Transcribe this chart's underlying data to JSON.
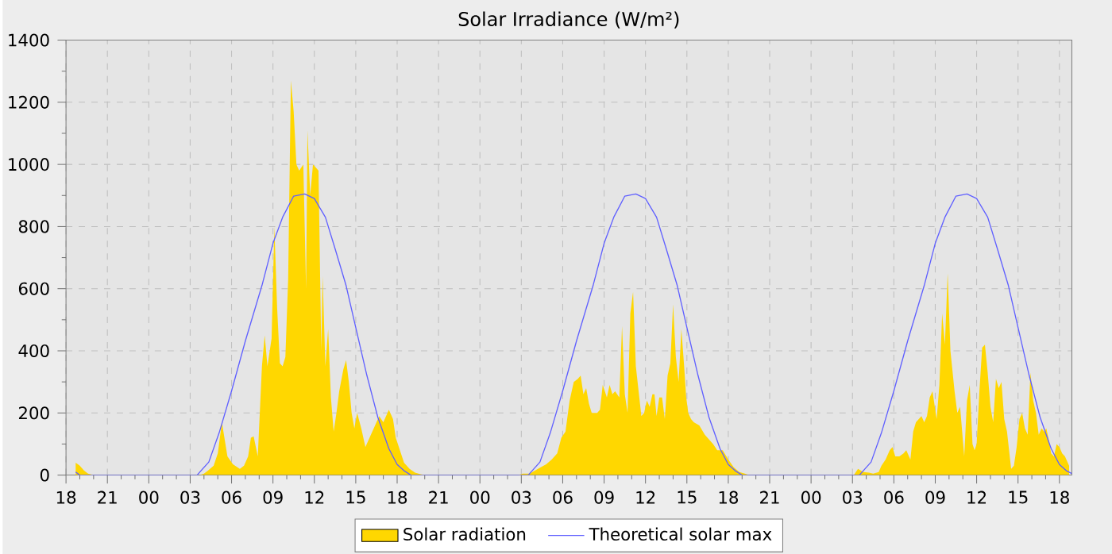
{
  "chart_data": {
    "type": "area",
    "title": "Solar Irradiance (W/m²)",
    "xlim": [
      18,
      90.9
    ],
    "ylim": [
      0,
      1400
    ],
    "xticks": [
      {
        "value": 18,
        "label": "18"
      },
      {
        "value": 21,
        "label": "21"
      },
      {
        "value": 24,
        "label": "00"
      },
      {
        "value": 27,
        "label": "03"
      },
      {
        "value": 30,
        "label": "06"
      },
      {
        "value": 33,
        "label": "09"
      },
      {
        "value": 36,
        "label": "12"
      },
      {
        "value": 39,
        "label": "15"
      },
      {
        "value": 42,
        "label": "18"
      },
      {
        "value": 45,
        "label": "21"
      },
      {
        "value": 48,
        "label": "00"
      },
      {
        "value": 51,
        "label": "03"
      },
      {
        "value": 54,
        "label": "06"
      },
      {
        "value": 57,
        "label": "09"
      },
      {
        "value": 60,
        "label": "12"
      },
      {
        "value": 63,
        "label": "15"
      },
      {
        "value": 66,
        "label": "18"
      },
      {
        "value": 69,
        "label": "21"
      },
      {
        "value": 72,
        "label": "00"
      },
      {
        "value": 75,
        "label": "03"
      },
      {
        "value": 78,
        "label": "06"
      },
      {
        "value": 81,
        "label": "09"
      },
      {
        "value": 84,
        "label": "12"
      },
      {
        "value": 87,
        "label": "15"
      },
      {
        "value": 90,
        "label": "18"
      }
    ],
    "yticks": [
      0,
      200,
      400,
      600,
      800,
      1000,
      1200,
      1400
    ],
    "grid": true,
    "legend": "bottom",
    "series": [
      {
        "name": "Solar radiation",
        "color": "#ffd700",
        "x": [
          18.7,
          19.0,
          19.3,
          19.6,
          20.0,
          27.7,
          28.0,
          28.3,
          28.7,
          29.0,
          29.3,
          29.7,
          30.1,
          30.6,
          30.9,
          31.2,
          31.4,
          31.6,
          31.9,
          32.2,
          32.4,
          32.6,
          32.9,
          33.1,
          33.3,
          33.5,
          33.7,
          33.9,
          34.1,
          34.3,
          34.5,
          34.7,
          34.9,
          35.2,
          35.4,
          35.5,
          35.7,
          35.9,
          36.1,
          36.3,
          36.5,
          36.6,
          36.8,
          37.0,
          37.2,
          37.4,
          37.6,
          37.8,
          38.1,
          38.3,
          38.5,
          38.7,
          38.9,
          39.1,
          39.4,
          39.7,
          40.0,
          40.4,
          40.7,
          41.0,
          41.4,
          41.7,
          41.9,
          42.2,
          42.5,
          42.9,
          43.3,
          43.7,
          44.0,
          50.8,
          51.1,
          51.6,
          52.0,
          52.4,
          52.8,
          53.2,
          53.6,
          53.9,
          54.2,
          54.5,
          54.8,
          55.1,
          55.3,
          55.5,
          55.7,
          55.9,
          56.1,
          56.5,
          56.7,
          56.9,
          57.2,
          57.4,
          57.6,
          57.8,
          58.1,
          58.3,
          58.5,
          58.7,
          58.9,
          59.1,
          59.3,
          59.7,
          59.9,
          60.1,
          60.3,
          60.5,
          60.65,
          60.8,
          61.0,
          61.2,
          61.4,
          61.6,
          61.8,
          62.0,
          62.2,
          62.4,
          62.6,
          62.8,
          62.95,
          63.1,
          63.3,
          63.5,
          63.9,
          64.3,
          64.7,
          64.9,
          65.2,
          65.6,
          66.0,
          66.4,
          66.8,
          67.2,
          67.5,
          75.1,
          75.4,
          75.8,
          76.2,
          76.5,
          76.9,
          77.1,
          77.4,
          77.7,
          77.9,
          78.1,
          78.4,
          78.7,
          78.9,
          79.2,
          79.4,
          79.6,
          79.8,
          80.0,
          80.2,
          80.4,
          80.6,
          80.8,
          81.1,
          81.3,
          81.5,
          81.7,
          81.9,
          82.1,
          82.4,
          82.6,
          82.8,
          83.1,
          83.3,
          83.5,
          83.7,
          83.85,
          84.0,
          84.2,
          84.4,
          84.6,
          84.8,
          85.0,
          85.2,
          85.4,
          85.6,
          85.8,
          86.0,
          86.2,
          86.5,
          86.7,
          86.9,
          87.1,
          87.3,
          87.5,
          87.7,
          87.9,
          88.1,
          88.3,
          88.5,
          88.7,
          88.9,
          89.05,
          89.2,
          89.4,
          89.6,
          89.8,
          90.0,
          90.2,
          90.4,
          90.7
        ],
        "values": [
          40,
          30,
          15,
          5,
          0,
          0,
          5,
          15,
          30,
          70,
          170,
          60,
          35,
          20,
          30,
          60,
          120,
          125,
          60,
          350,
          450,
          350,
          440,
          800,
          540,
          360,
          350,
          380,
          630,
          1270,
          1170,
          1000,
          980,
          1000,
          600,
          1110,
          900,
          1000,
          990,
          980,
          400,
          640,
          350,
          470,
          250,
          140,
          200,
          270,
          340,
          370,
          300,
          200,
          150,
          200,
          150,
          90,
          120,
          160,
          190,
          170,
          210,
          180,
          120,
          80,
          40,
          20,
          8,
          3,
          0,
          0,
          5,
          5,
          15,
          25,
          35,
          50,
          70,
          120,
          140,
          240,
          300,
          310,
          320,
          260,
          280,
          230,
          200,
          200,
          210,
          290,
          250,
          290,
          260,
          270,
          250,
          480,
          260,
          200,
          520,
          590,
          350,
          190,
          200,
          240,
          220,
          260,
          260,
          190,
          250,
          250,
          180,
          320,
          360,
          550,
          380,
          300,
          470,
          350,
          250,
          200,
          180,
          170,
          160,
          130,
          110,
          100,
          80,
          80,
          50,
          25,
          10,
          5,
          0,
          0,
          20,
          10,
          8,
          5,
          10,
          30,
          50,
          80,
          90,
          60,
          60,
          70,
          80,
          50,
          140,
          170,
          180,
          190,
          170,
          190,
          250,
          270,
          180,
          290,
          520,
          420,
          650,
          400,
          270,
          200,
          220,
          60,
          240,
          290,
          100,
          80,
          100,
          270,
          410,
          420,
          330,
          220,
          170,
          310,
          280,
          300,
          180,
          140,
          20,
          30,
          90,
          180,
          200,
          150,
          130,
          330,
          240,
          200,
          130,
          150,
          140,
          150,
          120,
          70,
          60,
          100,
          90,
          70,
          60,
          30
        ]
      },
      {
        "name": "Theoretical solar max",
        "type": "line",
        "color": "#6060ff",
        "x": [
          18.7,
          19.0,
          27.5,
          28.35,
          29.1,
          30.0,
          31.0,
          32.2,
          33.0,
          33.7,
          34.5,
          35.3,
          36.0,
          36.8,
          37.5,
          38.3,
          39.0,
          39.8,
          40.6,
          41.4,
          42.0,
          42.5,
          43.0,
          51.5,
          52.35,
          53.1,
          54.0,
          55.0,
          56.2,
          57.0,
          57.7,
          58.5,
          59.3,
          60.0,
          60.8,
          61.5,
          62.3,
          63.0,
          63.8,
          64.6,
          65.4,
          66.0,
          66.5,
          67.0,
          75.5,
          76.35,
          77.1,
          78.0,
          79.0,
          80.2,
          81.0,
          81.7,
          82.5,
          83.3,
          84.0,
          84.8,
          85.5,
          86.3,
          87.0,
          87.8,
          88.6,
          89.4,
          90.0,
          90.5,
          90.9
        ],
        "values": [
          10,
          0,
          0,
          42,
          136,
          271,
          432,
          610,
          746,
          830,
          898,
          905,
          890,
          830,
          729,
          610,
          475,
          322,
          186,
          85,
          34,
          14,
          0,
          0,
          42,
          136,
          271,
          432,
          610,
          746,
          830,
          898,
          905,
          890,
          830,
          729,
          610,
          475,
          322,
          186,
          85,
          34,
          14,
          0,
          0,
          42,
          136,
          271,
          432,
          610,
          746,
          830,
          898,
          905,
          890,
          830,
          729,
          610,
          475,
          322,
          186,
          85,
          34,
          14,
          5
        ]
      }
    ]
  }
}
